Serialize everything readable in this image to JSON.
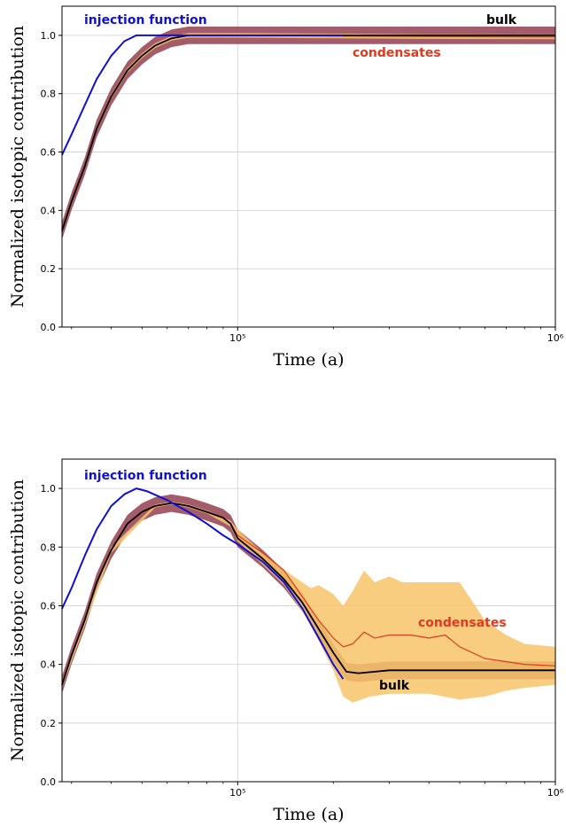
{
  "chart_data": [
    {
      "type": "line",
      "xlabel": "Time (a)",
      "ylabel": "Normalized isotopic contribution",
      "xscale": "log",
      "xlim": [
        28000,
        1000000
      ],
      "ylim": [
        0.0,
        1.1
      ],
      "xticks": [
        {
          "value": 100000,
          "label": "10⁵"
        },
        {
          "value": 1000000,
          "label": "10⁶"
        }
      ],
      "yticks": [
        0.0,
        0.2,
        0.4,
        0.6,
        0.8,
        1.0
      ],
      "grid": true,
      "annotations": [
        {
          "text": "injection function",
          "color": "#1010d0"
        },
        {
          "text": "bulk",
          "color": "#000000"
        },
        {
          "text": "condensates",
          "color": "#e03a1e"
        }
      ],
      "series": [
        {
          "name": "injection function",
          "color": "#1010d0",
          "points": [
            [
              28000,
              0.59
            ],
            [
              30000,
              0.66
            ],
            [
              33000,
              0.76
            ],
            [
              36000,
              0.85
            ],
            [
              40000,
              0.93
            ],
            [
              44000,
              0.98
            ],
            [
              48000,
              1.0
            ],
            [
              60000,
              1.0
            ],
            [
              100000,
              1.0
            ],
            [
              150000,
              1.0
            ],
            [
              215000,
              1.0
            ]
          ]
        },
        {
          "name": "bulk",
          "color": "#000000",
          "band_color": "#9b4a5a",
          "points": [
            [
              28000,
              0.33
            ],
            [
              30000,
              0.43
            ],
            [
              33000,
              0.55
            ],
            [
              36000,
              0.68
            ],
            [
              40000,
              0.79
            ],
            [
              45000,
              0.88
            ],
            [
              50000,
              0.93
            ],
            [
              55000,
              0.965
            ],
            [
              62000,
              0.99
            ],
            [
              70000,
              1.0
            ],
            [
              100000,
              1.0
            ],
            [
              300000,
              1.0
            ],
            [
              1000000,
              1.0
            ]
          ],
          "band_width": 0.03
        },
        {
          "name": "condensates",
          "color": "#e03a1e",
          "band_color": "#f7c46a",
          "points": [
            [
              28000,
              0.33
            ],
            [
              30000,
              0.43
            ],
            [
              33000,
              0.55
            ],
            [
              36000,
              0.68
            ],
            [
              40000,
              0.79
            ],
            [
              45000,
              0.88
            ],
            [
              50000,
              0.93
            ],
            [
              55000,
              0.965
            ],
            [
              62000,
              0.99
            ],
            [
              70000,
              1.0
            ],
            [
              100000,
              1.0
            ],
            [
              200000,
              0.998
            ],
            [
              400000,
              0.996
            ],
            [
              1000000,
              0.995
            ]
          ],
          "band_width": 0.008
        }
      ]
    },
    {
      "type": "line",
      "xlabel": "Time (a)",
      "ylabel": "Normalized isotopic contribution",
      "xscale": "log",
      "xlim": [
        28000,
        1000000
      ],
      "ylim": [
        0.0,
        1.1
      ],
      "xticks": [
        {
          "value": 100000,
          "label": "10⁵"
        },
        {
          "value": 1000000,
          "label": "10⁶"
        }
      ],
      "yticks": [
        0.0,
        0.2,
        0.4,
        0.6,
        0.8,
        1.0
      ],
      "grid": true,
      "annotations": [
        {
          "text": "injection function",
          "color": "#1010d0"
        },
        {
          "text": "condensates",
          "color": "#e03a1e"
        },
        {
          "text": "bulk",
          "color": "#000000"
        }
      ],
      "series": [
        {
          "name": "injection function",
          "color": "#1010d0",
          "points": [
            [
              28000,
              0.59
            ],
            [
              30000,
              0.66
            ],
            [
              33000,
              0.77
            ],
            [
              36000,
              0.86
            ],
            [
              40000,
              0.94
            ],
            [
              44000,
              0.98
            ],
            [
              48000,
              1.0
            ],
            [
              52000,
              0.99
            ],
            [
              60000,
              0.96
            ],
            [
              70000,
              0.92
            ],
            [
              80000,
              0.88
            ],
            [
              90000,
              0.84
            ],
            [
              100000,
              0.81
            ],
            [
              120000,
              0.75
            ],
            [
              140000,
              0.68
            ],
            [
              160000,
              0.59
            ],
            [
              180000,
              0.49
            ],
            [
              200000,
              0.4
            ],
            [
              215000,
              0.35
            ]
          ]
        },
        {
          "name": "bulk",
          "color": "#000000",
          "band_color": "#9b4a5a",
          "points": [
            [
              28000,
              0.33
            ],
            [
              30000,
              0.43
            ],
            [
              33000,
              0.55
            ],
            [
              36000,
              0.68
            ],
            [
              40000,
              0.79
            ],
            [
              45000,
              0.88
            ],
            [
              50000,
              0.92
            ],
            [
              55000,
              0.94
            ],
            [
              62000,
              0.95
            ],
            [
              70000,
              0.94
            ],
            [
              80000,
              0.92
            ],
            [
              90000,
              0.9
            ],
            [
              95000,
              0.88
            ],
            [
              100000,
              0.83
            ],
            [
              120000,
              0.76
            ],
            [
              140000,
              0.69
            ],
            [
              160000,
              0.61
            ],
            [
              180000,
              0.52
            ],
            [
              200000,
              0.44
            ],
            [
              220000,
              0.375
            ],
            [
              240000,
              0.37
            ],
            [
              300000,
              0.38
            ],
            [
              400000,
              0.38
            ],
            [
              600000,
              0.38
            ],
            [
              1000000,
              0.38
            ]
          ],
          "band_width": 0.03
        },
        {
          "name": "condensates",
          "color": "#e03a1e",
          "band_color": "#f7c46a",
          "points": [
            [
              28000,
              0.33
            ],
            [
              30000,
              0.43
            ],
            [
              33000,
              0.55
            ],
            [
              36000,
              0.68
            ],
            [
              40000,
              0.79
            ],
            [
              45000,
              0.88
            ],
            [
              50000,
              0.92
            ],
            [
              55000,
              0.94
            ],
            [
              62000,
              0.95
            ],
            [
              70000,
              0.94
            ],
            [
              80000,
              0.92
            ],
            [
              90000,
              0.9
            ],
            [
              95000,
              0.88
            ],
            [
              100000,
              0.84
            ],
            [
              120000,
              0.78
            ],
            [
              140000,
              0.72
            ],
            [
              160000,
              0.63
            ],
            [
              180000,
              0.55
            ],
            [
              200000,
              0.49
            ],
            [
              215000,
              0.46
            ],
            [
              230000,
              0.47
            ],
            [
              250000,
              0.51
            ],
            [
              270000,
              0.49
            ],
            [
              300000,
              0.5
            ],
            [
              350000,
              0.5
            ],
            [
              400000,
              0.49
            ],
            [
              450000,
              0.5
            ],
            [
              500000,
              0.46
            ],
            [
              600000,
              0.42
            ],
            [
              800000,
              0.4
            ],
            [
              1000000,
              0.395
            ]
          ],
          "band_upper": [
            [
              28000,
              0.34
            ],
            [
              40000,
              0.8
            ],
            [
              55000,
              0.945
            ],
            [
              62000,
              0.955
            ],
            [
              70000,
              0.945
            ],
            [
              80000,
              0.925
            ],
            [
              95000,
              0.89
            ],
            [
              100000,
              0.86
            ],
            [
              120000,
              0.78
            ],
            [
              130000,
              0.75
            ],
            [
              150000,
              0.7
            ],
            [
              170000,
              0.66
            ],
            [
              180000,
              0.67
            ],
            [
              200000,
              0.64
            ],
            [
              215000,
              0.6
            ],
            [
              230000,
              0.65
            ],
            [
              250000,
              0.72
            ],
            [
              270000,
              0.68
            ],
            [
              300000,
              0.7
            ],
            [
              330000,
              0.68
            ],
            [
              400000,
              0.68
            ],
            [
              500000,
              0.68
            ],
            [
              600000,
              0.55
            ],
            [
              700000,
              0.5
            ],
            [
              800000,
              0.47
            ],
            [
              1000000,
              0.46
            ]
          ],
          "band_lower": [
            [
              28000,
              0.32
            ],
            [
              40000,
              0.78
            ],
            [
              55000,
              0.935
            ],
            [
              62000,
              0.945
            ],
            [
              70000,
              0.935
            ],
            [
              80000,
              0.915
            ],
            [
              95000,
              0.87
            ],
            [
              100000,
              0.82
            ],
            [
              120000,
              0.74
            ],
            [
              140000,
              0.67
            ],
            [
              160000,
              0.58
            ],
            [
              180000,
              0.48
            ],
            [
              200000,
              0.38
            ],
            [
              215000,
              0.29
            ],
            [
              230000,
              0.27
            ],
            [
              260000,
              0.29
            ],
            [
              300000,
              0.3
            ],
            [
              400000,
              0.3
            ],
            [
              500000,
              0.28
            ],
            [
              600000,
              0.29
            ],
            [
              700000,
              0.31
            ],
            [
              800000,
              0.32
            ],
            [
              1000000,
              0.33
            ]
          ]
        }
      ]
    }
  ]
}
